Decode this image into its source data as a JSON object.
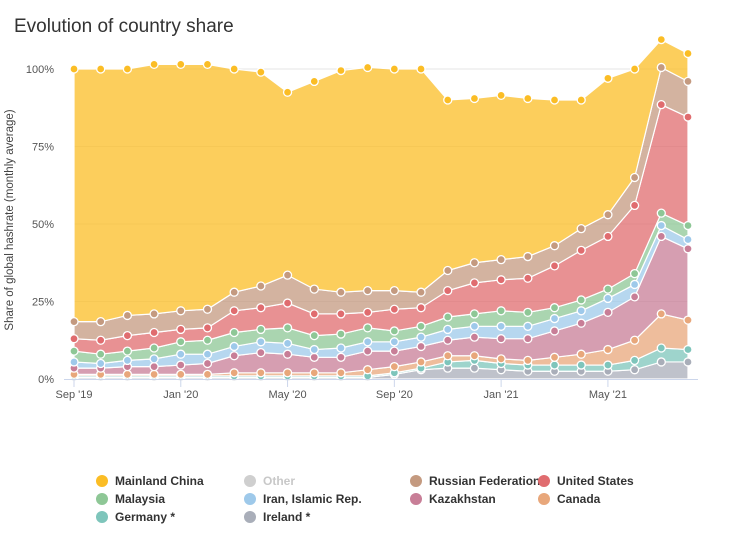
{
  "title": "Evolution of country share",
  "chart_data": {
    "type": "area",
    "stacked": true,
    "ylabel": "Share of global hashrate (monthly average)",
    "ylim": [
      0,
      100
    ],
    "yticks": [
      0,
      25,
      50,
      75,
      100
    ],
    "ytick_labels": [
      "0%",
      "25%",
      "50%",
      "75%",
      "100%"
    ],
    "x": [
      "2019-09",
      "2019-10",
      "2019-11",
      "2019-12",
      "2020-01",
      "2020-02",
      "2020-03",
      "2020-04",
      "2020-05",
      "2020-06",
      "2020-07",
      "2020-08",
      "2020-09",
      "2020-10",
      "2020-11",
      "2020-12",
      "2021-01",
      "2021-02",
      "2021-03",
      "2021-04",
      "2021-05",
      "2021-06",
      "2021-07",
      "2021-08"
    ],
    "xtick_labels": [
      {
        "index": 0,
        "label": "Sep '19"
      },
      {
        "index": 4,
        "label": "Jan '20"
      },
      {
        "index": 8,
        "label": "May '20"
      },
      {
        "index": 12,
        "label": "Sep '20"
      },
      {
        "index": 16,
        "label": "Jan '21"
      },
      {
        "index": 20,
        "label": "May '21"
      }
    ],
    "legend_placement": "bottom",
    "series": [
      {
        "name": "Ireland *",
        "color": "#a9aeb9",
        "hidden": false,
        "values": [
          0.5,
          0.5,
          0.5,
          0.5,
          0.5,
          0.5,
          0.5,
          0.5,
          0.5,
          0.5,
          0.5,
          0.5,
          1.5,
          3,
          3.5,
          3.5,
          3,
          2.5,
          2.5,
          2.5,
          2.5,
          3,
          5.5,
          5.5
        ]
      },
      {
        "name": "Germany *",
        "color": "#7ec5bb",
        "hidden": false,
        "values": [
          0.5,
          0.5,
          0.5,
          0.5,
          0.5,
          0.5,
          0.5,
          0.5,
          0.5,
          0.5,
          0.5,
          0.5,
          0.5,
          0.5,
          2,
          2.5,
          2,
          2,
          2,
          2,
          2,
          3,
          4.5,
          4
        ]
      },
      {
        "name": "Other",
        "color": "#cfcfcf",
        "hidden": true,
        "values": [
          0,
          0,
          0,
          0,
          0,
          0,
          0,
          0,
          0,
          0,
          0,
          0,
          0,
          0,
          0,
          0,
          0,
          0,
          0,
          0,
          0,
          0,
          0,
          0
        ]
      },
      {
        "name": "Canada",
        "color": "#e8a77b",
        "hidden": false,
        "values": [
          0.5,
          0.5,
          0.5,
          0.5,
          0.5,
          0.5,
          1,
          1,
          1,
          1,
          1,
          2,
          2,
          2,
          2,
          1.5,
          1.5,
          1.5,
          2.5,
          3.5,
          5,
          6.5,
          11,
          9.5
        ]
      },
      {
        "name": "Kazakhstan",
        "color": "#c87e97",
        "hidden": false,
        "values": [
          2,
          2,
          2.5,
          2.5,
          3,
          3.5,
          5.5,
          6.5,
          6,
          5,
          5,
          6,
          5,
          5,
          5,
          6,
          6.5,
          7,
          8.5,
          10,
          12,
          14,
          25,
          23
        ]
      },
      {
        "name": "Iran, Islamic Rep.",
        "color": "#9ec9ea",
        "hidden": false,
        "values": [
          2,
          1.5,
          2,
          2.5,
          3.5,
          3,
          3,
          3.5,
          3.5,
          2.5,
          3,
          3,
          3,
          3,
          3.5,
          3.5,
          4,
          4,
          4,
          4,
          4.5,
          4,
          3.5,
          3
        ]
      },
      {
        "name": "Malaysia",
        "color": "#8ec796",
        "hidden": false,
        "values": [
          3.5,
          3,
          3,
          3.5,
          4,
          4.5,
          4.5,
          4,
          5,
          4.5,
          4.5,
          4.5,
          3.5,
          3.5,
          4,
          4,
          5,
          4.5,
          3.5,
          3.5,
          3,
          3.5,
          4,
          4.5
        ]
      },
      {
        "name": "United States",
        "color": "#e06c6f",
        "hidden": false,
        "values": [
          4,
          4.5,
          5,
          5,
          4,
          4,
          7,
          7,
          8,
          7,
          6.5,
          5,
          7,
          6,
          8.5,
          10,
          10,
          11,
          13.5,
          16,
          17,
          22,
          35,
          35
        ]
      },
      {
        "name": "Russian Federation",
        "color": "#c49a80",
        "hidden": false,
        "values": [
          5.5,
          6,
          6.5,
          6,
          6,
          6,
          6,
          7,
          9,
          8,
          7,
          7,
          6,
          5,
          6.5,
          6.5,
          6.5,
          7,
          6.5,
          7,
          7,
          9,
          12,
          11.5
        ]
      },
      {
        "name": "Mainland China",
        "color": "#fbbd25",
        "hidden": false,
        "values": [
          81.5,
          81.5,
          79.5,
          80.5,
          79.5,
          79,
          72,
          69,
          59,
          67,
          71.5,
          72,
          71.5,
          72,
          55,
          53,
          53,
          51,
          47,
          41.5,
          44,
          35,
          9,
          9
        ]
      }
    ]
  },
  "legend": {
    "items": [
      {
        "name": "Mainland China",
        "color": "#fbbd25",
        "muted": false
      },
      {
        "name": "Other",
        "color": "#cfcfcf",
        "muted": true
      },
      {
        "name": "Russian Federation",
        "color": "#c49a80",
        "muted": false
      },
      {
        "name": "United States",
        "color": "#e06c6f",
        "muted": false
      },
      {
        "name": "Malaysia",
        "color": "#8ec796",
        "muted": false
      },
      {
        "name": "Iran, Islamic Rep.",
        "color": "#9ec9ea",
        "muted": false
      },
      {
        "name": "Kazakhstan",
        "color": "#c87e97",
        "muted": false
      },
      {
        "name": "Canada",
        "color": "#e8a77b",
        "muted": false
      },
      {
        "name": "Germany *",
        "color": "#7ec5bb",
        "muted": false
      },
      {
        "name": "Ireland *",
        "color": "#a9aeb9",
        "muted": false
      }
    ]
  }
}
